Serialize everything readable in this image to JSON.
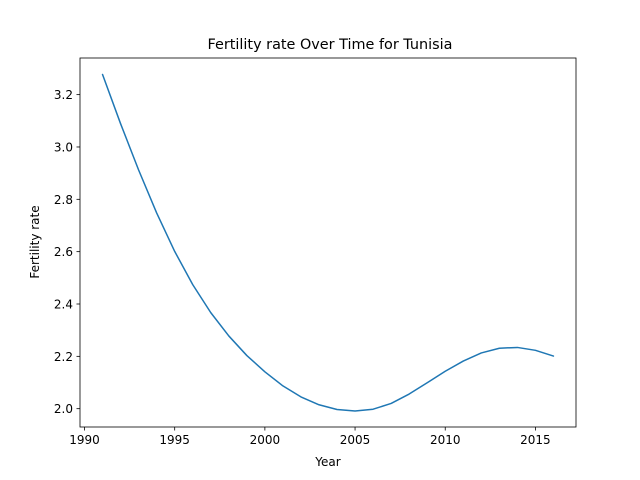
{
  "chart_data": {
    "type": "line",
    "title": "Fertility rate Over Time for Tunisia",
    "xlabel": "Year",
    "ylabel": "Fertility rate",
    "xlim": [
      1989.75,
      2017.25
    ],
    "ylim": [
      1.93,
      3.34
    ],
    "xticks": [
      1990,
      1995,
      2000,
      2005,
      2010,
      2015
    ],
    "yticks": [
      2.0,
      2.2,
      2.4,
      2.6,
      2.8,
      3.0,
      3.2
    ],
    "grid": false,
    "series": [
      {
        "color": "#1f77b4",
        "x": [
          1991,
          1992,
          1993,
          1994,
          1995,
          1996,
          1997,
          1998,
          1999,
          2000,
          2001,
          2002,
          2003,
          2004,
          2005,
          2006,
          2007,
          2008,
          2009,
          2010,
          2011,
          2012,
          2013,
          2014,
          2015,
          2016
        ],
        "y": [
          3.277,
          3.089,
          2.912,
          2.748,
          2.601,
          2.474,
          2.367,
          2.278,
          2.203,
          2.141,
          2.087,
          2.045,
          2.015,
          1.997,
          1.991,
          1.998,
          2.02,
          2.056,
          2.099,
          2.143,
          2.182,
          2.213,
          2.231,
          2.234,
          2.223,
          2.201
        ]
      }
    ]
  }
}
